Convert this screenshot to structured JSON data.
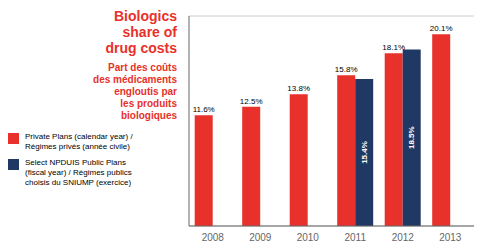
{
  "chart_data": {
    "type": "bar",
    "title": "Biologics\nshare of\ndrug costs",
    "subtitle": "Part des coûts\ndes médicaments\nengloutis par\nles produits\nbiologiques",
    "title_color": "#e8312a",
    "categories": [
      "2008",
      "2009",
      "2010",
      "2011",
      "2012",
      "2013"
    ],
    "series": [
      {
        "name": "Private Plans (calendar year) /\nRégimes privés (année civile)",
        "color": "#e8312a",
        "values": [
          11.6,
          12.5,
          13.8,
          15.8,
          18.1,
          20.1
        ],
        "value_labels": [
          "11.6%",
          "12.5%",
          "13.8%",
          "15.8%",
          "18.1%",
          "20.1%"
        ]
      },
      {
        "name": "Select NPDUIS Public Plans\n(fiscal year) / Régimes publics\nchoisis du SNIUMP (exercice)",
        "color": "#1f3864",
        "values": [
          null,
          null,
          null,
          15.4,
          18.5,
          null
        ],
        "value_labels": [
          null,
          null,
          null,
          "15.4%",
          "18.5%",
          null
        ]
      }
    ],
    "ylim": [
      0,
      22
    ],
    "yticks": [
      0,
      10,
      20
    ],
    "grid": true,
    "data_labels": true,
    "tick_labels": "x",
    "legend": "left"
  }
}
